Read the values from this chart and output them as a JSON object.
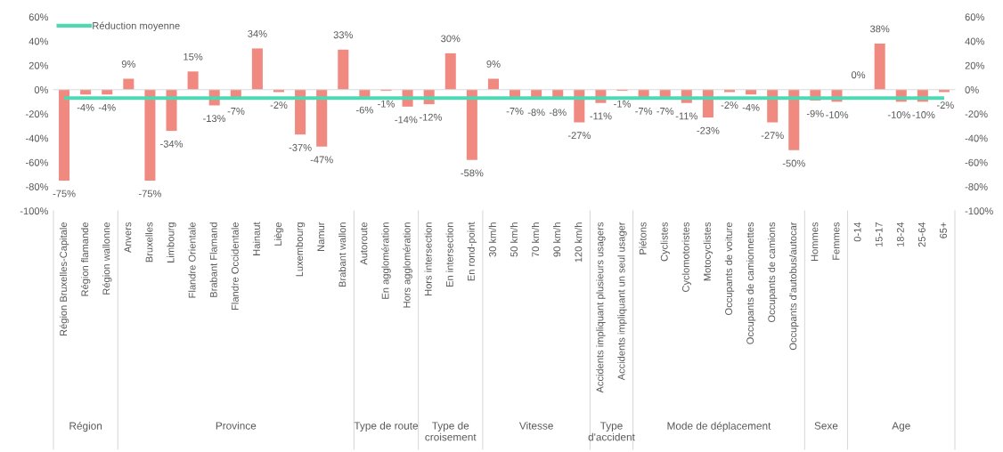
{
  "chart_data": {
    "type": "bar",
    "categories": [
      "Région Bruxelles-Capitale",
      "Région flamande",
      "Région wallonne",
      "Anvers",
      "Bruxelles",
      "Limbourg",
      "Flandre Orientale",
      "Brabant Flamand",
      "Flandre Occidentale",
      "Hainaut",
      "Liège",
      "Luxembourg",
      "Namur",
      "Brabant wallon",
      "Autoroute",
      "En agglomération",
      "Hors agglomération",
      "Hors intersection",
      "En intersection",
      "En rond-point",
      "30 km/h",
      "50 km/h",
      "70 km/h",
      "90 km/h",
      "120 km/h",
      "Accidents impliquant plusieurs usagers",
      "Accidents impliquant un seul usager",
      "Piétons",
      "Cyclistes",
      "Cyclomotoristes",
      "Motocyclistes",
      "Occupants de voiture",
      "Occupants de camionnettes",
      "Occupants de camions",
      "Occupants d'autobus/autocar",
      "Hommes",
      "Femmes",
      "0-14",
      "15-17",
      "18-24",
      "25-64",
      "65+"
    ],
    "values": [
      -75,
      -4,
      -4,
      9,
      -75,
      -34,
      15,
      -13,
      -7,
      34,
      -2,
      -37,
      -47,
      33,
      -6,
      -1,
      -14,
      -12,
      30,
      -58,
      9,
      -7,
      -8,
      -8,
      -27,
      -11,
      -1,
      -7,
      -7,
      -11,
      -23,
      -2,
      -4,
      -27,
      -50,
      -9,
      -10,
      0,
      38,
      -10,
      -10,
      -2
    ],
    "value_labels": [
      "-75%",
      "-4%",
      "-4%",
      "9%",
      "-75%",
      "-34%",
      "15%",
      "-13%",
      "-7%",
      "34%",
      "-2%",
      "-37%",
      "-47%",
      "33%",
      "-6%",
      "-1%",
      "-14%",
      "-12%",
      "30%",
      "-58%",
      "9%",
      "-7%",
      "-8%",
      "-8%",
      "-27%",
      "-11%",
      "-1%",
      "-7%",
      "-7%",
      "-11%",
      "-23%",
      "-2%",
      "-4%",
      "-27%",
      "-50%",
      "-9%",
      "-10%",
      "0%",
      "38%",
      "-10%",
      "-10%",
      "-2%"
    ],
    "color": "#f08a80",
    "ylim": [
      -100,
      60
    ],
    "yticks": [
      {
        "value": -100,
        "label": "-100%"
      },
      {
        "value": -80,
        "label": "-80%"
      },
      {
        "value": -60,
        "label": "-60%"
      },
      {
        "value": -40,
        "label": "-40%"
      },
      {
        "value": -20,
        "label": "-20%"
      },
      {
        "value": 0,
        "label": "0%"
      },
      {
        "value": 20,
        "label": "20%"
      },
      {
        "value": 40,
        "label": "40%"
      },
      {
        "value": 60,
        "label": "60%"
      }
    ],
    "y2lim": [
      -100,
      60
    ],
    "y2ticks": [
      {
        "value": -100,
        "label": "-100%"
      },
      {
        "value": -80,
        "label": "-80%"
      },
      {
        "value": -60,
        "label": "-60%"
      },
      {
        "value": -40,
        "label": "-40%"
      },
      {
        "value": -20,
        "label": "-20%"
      },
      {
        "value": 0,
        "label": "0%"
      },
      {
        "value": 20,
        "label": "20%"
      },
      {
        "value": 40,
        "label": "40%"
      },
      {
        "value": 60,
        "label": "60%"
      }
    ],
    "ref_lines": [
      {
        "axis": "y",
        "value": -7,
        "label": "Réduction moyenne",
        "color": "#4ed9b4"
      }
    ],
    "legend": "top left",
    "annotations": [
      "Région",
      "Province",
      "Type de route",
      "Type de croisement",
      "Vitesse",
      "Type d'accident",
      "Mode de déplacement",
      "Sexe",
      "Age"
    ]
  }
}
